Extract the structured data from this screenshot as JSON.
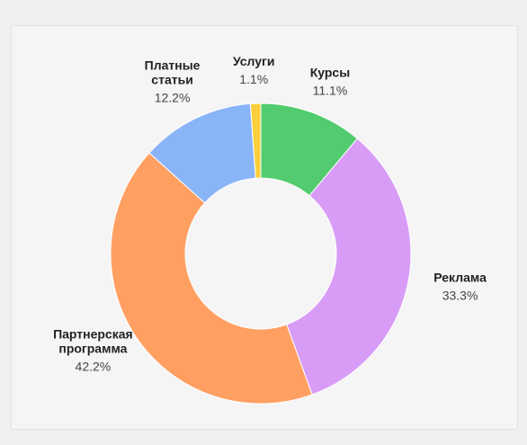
{
  "chart_data": {
    "type": "donut",
    "categories": [
      "Курсы",
      "Реклама",
      "Партнерская программа",
      "Платные статьи",
      "Услуги"
    ],
    "values": [
      11.1,
      33.3,
      42.2,
      12.2,
      1.1
    ],
    "value_labels": [
      "11.1%",
      "33.3%",
      "42.2%",
      "12.2%",
      "1.1%"
    ],
    "colors": [
      "#52cc6e",
      "#d89cf6",
      "#ff9f62",
      "#8ab4f8",
      "#f9cf3b"
    ]
  }
}
